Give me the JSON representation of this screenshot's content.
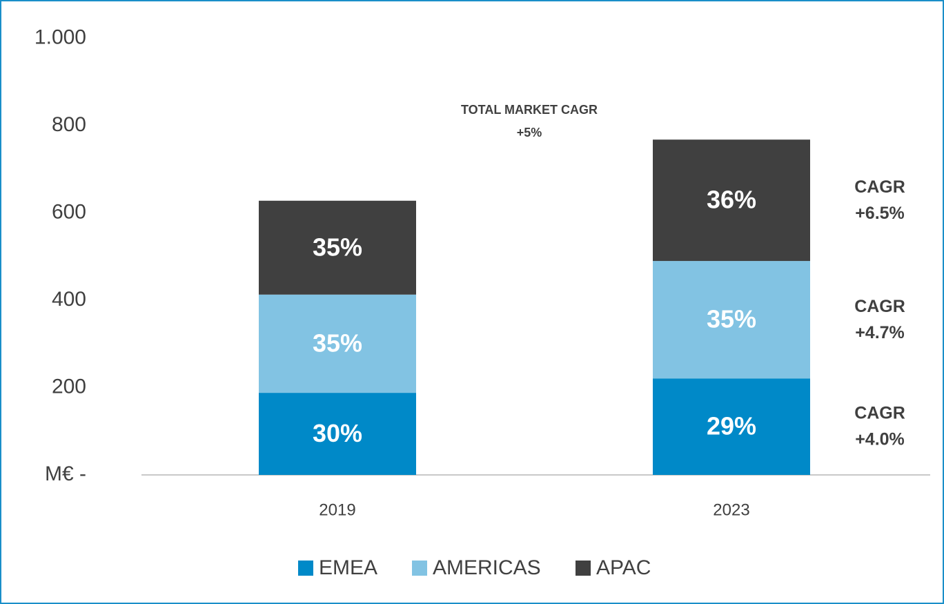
{
  "chart_data": {
    "type": "stacked_bar",
    "categories": [
      "2019",
      "2023"
    ],
    "series": [
      {
        "name": "EMEA",
        "color": "#0089c8",
        "values": [
          188,
          221
        ],
        "shares": [
          "30%",
          "29%"
        ],
        "annotation": [
          "CAGR",
          "+4.0%"
        ]
      },
      {
        "name": "AMERICAS",
        "color": "#82c3e3",
        "values": [
          225,
          269
        ],
        "shares": [
          "35%",
          "35%"
        ],
        "annotation": [
          "CAGR",
          "+4.7%"
        ]
      },
      {
        "name": "APAC",
        "color": "#404040",
        "values": [
          215,
          278
        ],
        "shares": [
          "35%",
          "36%"
        ],
        "annotation": [
          "CAGR",
          "+6.5%"
        ]
      }
    ],
    "total_annotation": [
      "TOTAL MARKET CAGR",
      "+5%"
    ],
    "ylim": [
      0,
      1000
    ],
    "yticks": [
      {
        "value": 0,
        "label": "M€  -"
      },
      200,
      400,
      600,
      800,
      {
        "value": 1000,
        "label": "1.000"
      }
    ],
    "grid": false,
    "legend": "bottom"
  }
}
